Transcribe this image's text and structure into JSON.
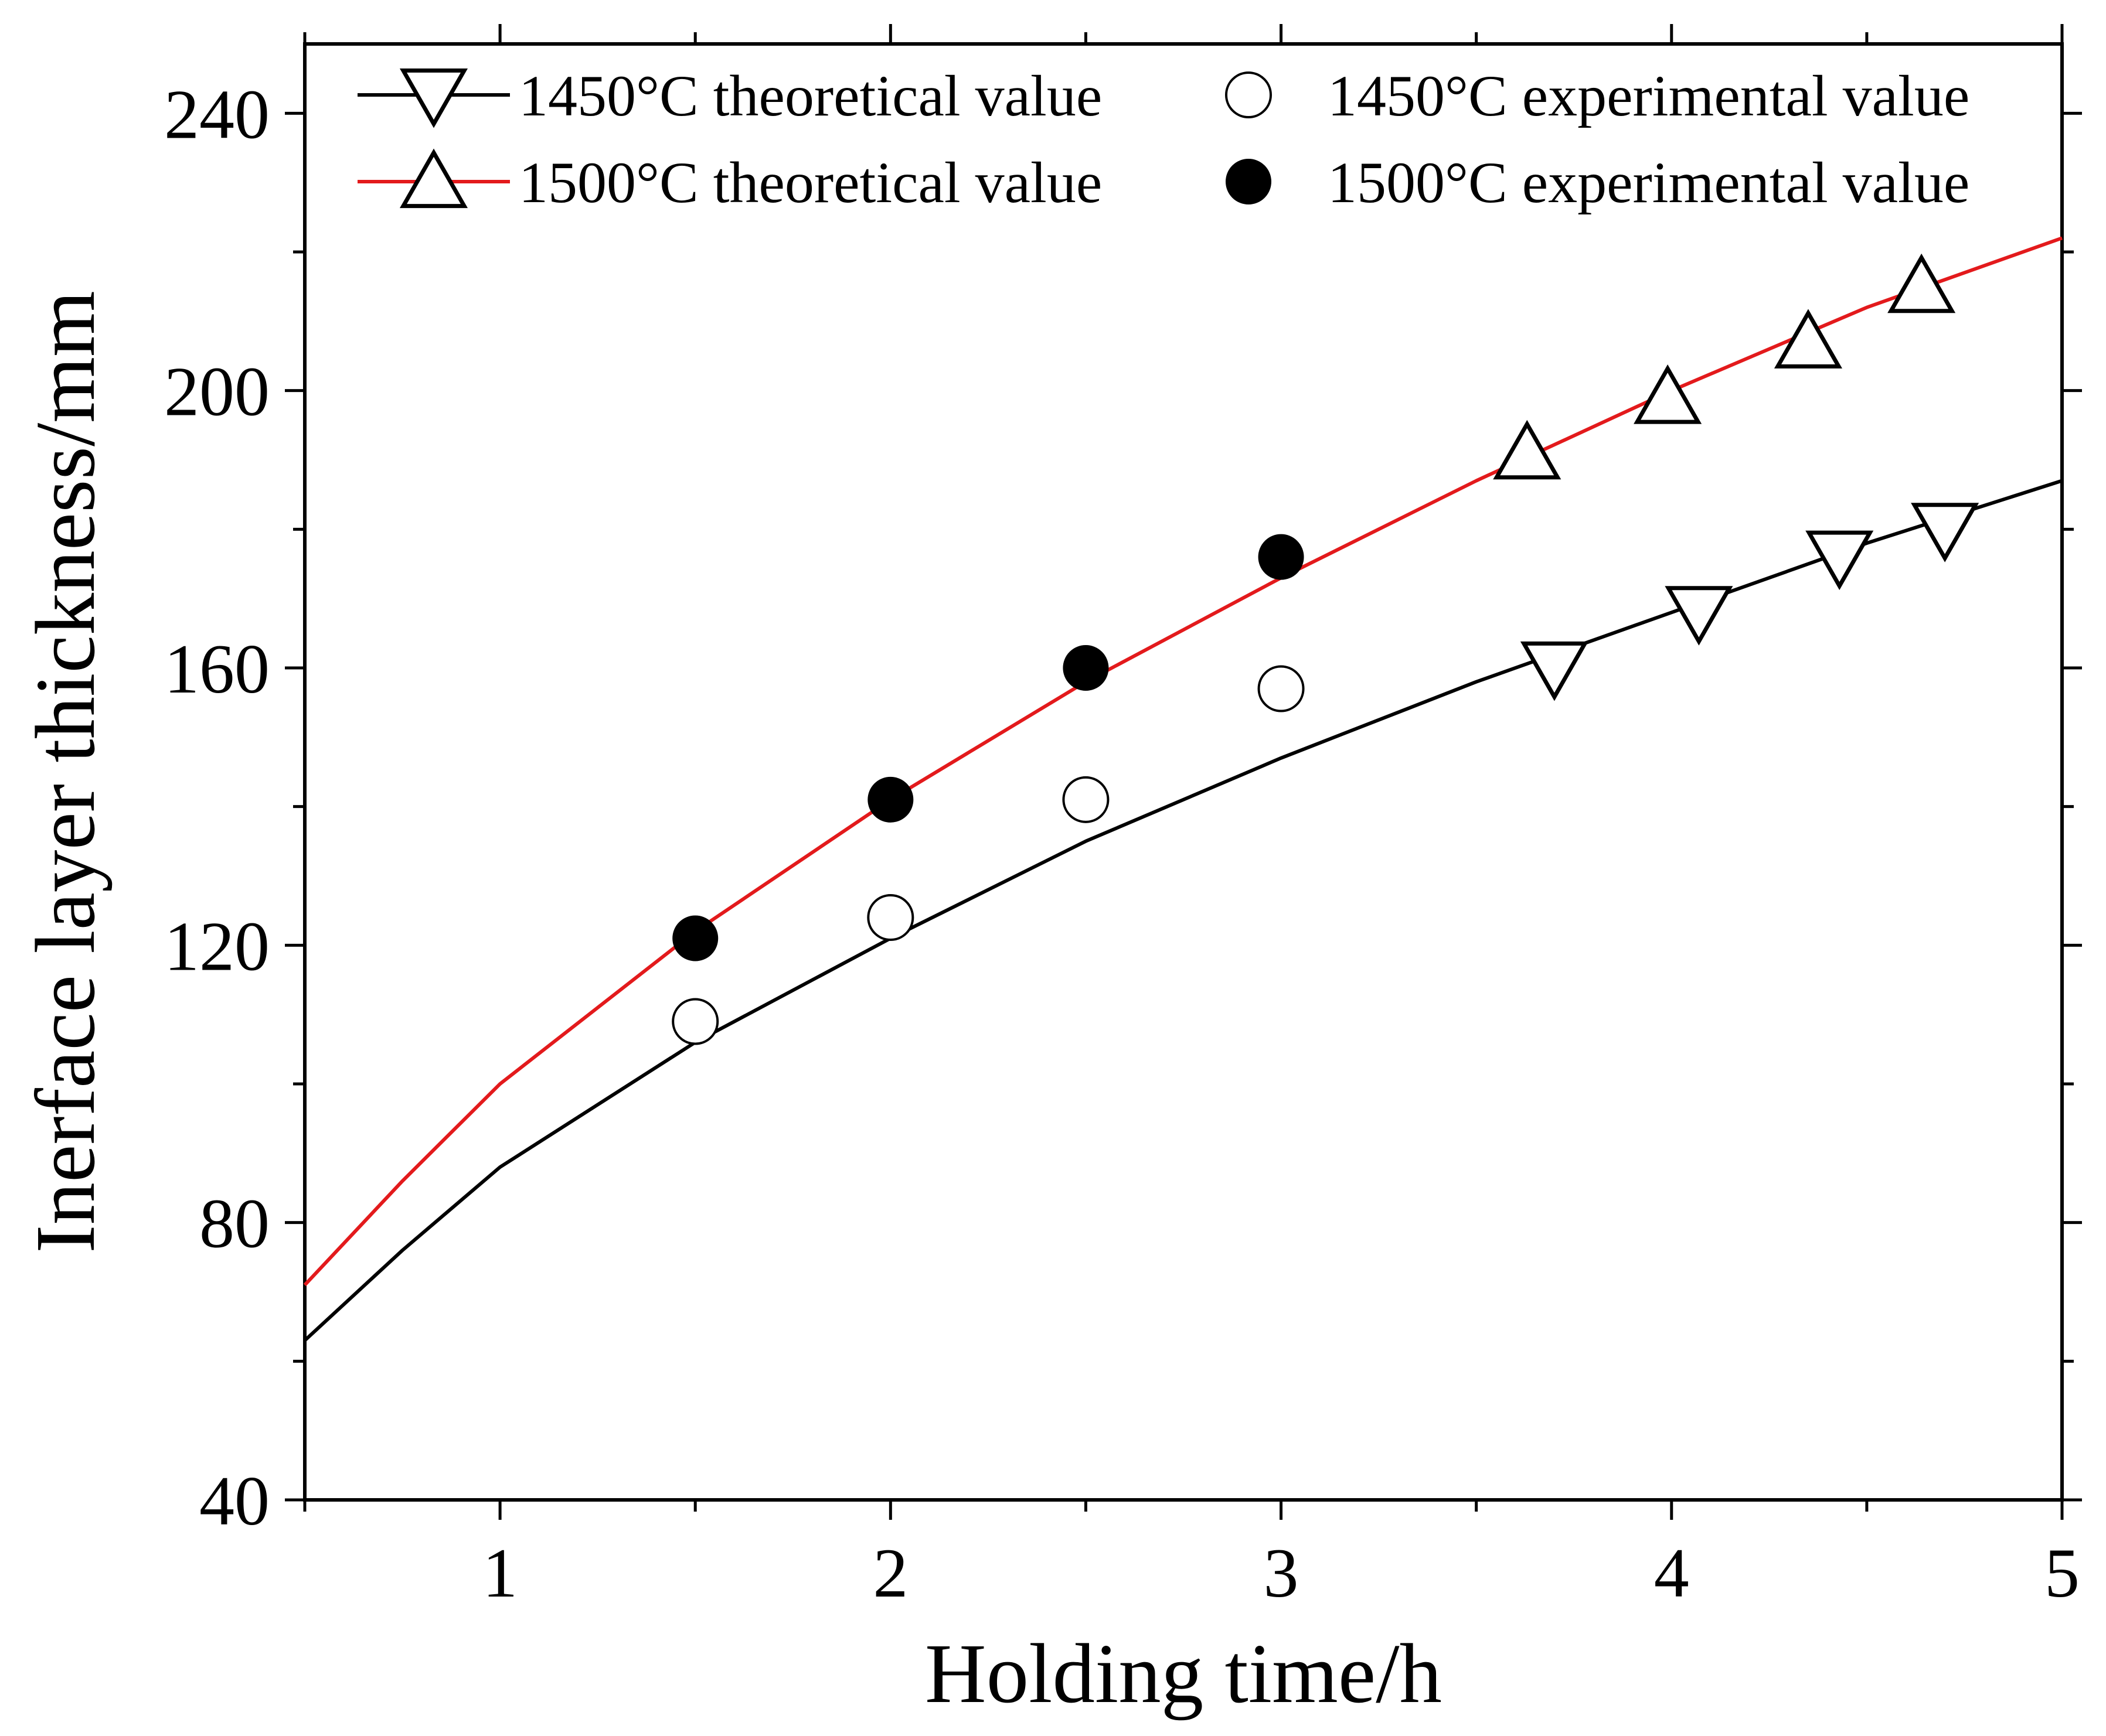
{
  "chart_data": {
    "type": "line",
    "title": "",
    "xlabel": "Holding time/h",
    "ylabel": "Inerface layer thickness/mm",
    "xlim": [
      0.5,
      5
    ],
    "ylim": [
      40,
      250
    ],
    "xticks": [
      1,
      2,
      3,
      4,
      5
    ],
    "yticks": [
      40,
      80,
      120,
      160,
      200,
      240
    ],
    "x_minor_step": 0.5,
    "y_minor_step": 20,
    "legend": {
      "position": "top",
      "entries": [
        {
          "series": "1450 theoretical",
          "label": "1450°C  theoretical value"
        },
        {
          "series": "1450 experimental",
          "label": "1450°C experimental value"
        },
        {
          "series": "1500 theoretical",
          "label": "1500°C  theoretical value"
        },
        {
          "series": "1500 experimental",
          "label": "1500°C experimental value"
        }
      ]
    },
    "series": [
      {
        "name": "1450 theoretical",
        "kind": "line",
        "color": "#000000",
        "marker": "triangle-down",
        "x": [
          0.5,
          0.75,
          1.0,
          1.5,
          2.0,
          2.5,
          3.0,
          3.5,
          4.0,
          4.5,
          5.0
        ],
        "y": [
          63,
          76,
          88,
          106,
          121,
          135,
          147,
          158,
          168,
          178,
          187
        ],
        "marker_points": {
          "x": [
            3.7,
            4.07,
            4.43,
            4.7
          ],
          "y": [
            160,
            168,
            176,
            180
          ]
        }
      },
      {
        "name": "1500 theoretical",
        "kind": "line",
        "color": "#e31a1c",
        "marker": "triangle-up",
        "x": [
          0.5,
          0.75,
          1.0,
          1.5,
          2.0,
          2.5,
          3.0,
          3.5,
          4.0,
          4.5,
          5.0
        ],
        "y": [
          71,
          86,
          100,
          122,
          141,
          158,
          173,
          187,
          200,
          212,
          222
        ],
        "marker_points": {
          "x": [
            3.63,
            3.99,
            4.35,
            4.64
          ],
          "y": [
            191,
            199,
            207,
            215
          ]
        }
      },
      {
        "name": "1450 experimental",
        "kind": "scatter",
        "color": "#000000",
        "marker": "circle-open",
        "x": [
          1.5,
          2.0,
          2.5,
          3.0
        ],
        "y": [
          109,
          124,
          141,
          157
        ]
      },
      {
        "name": "1500 experimental",
        "kind": "scatter",
        "color": "#000000",
        "marker": "circle-filled",
        "x": [
          1.5,
          2.0,
          2.5,
          3.0
        ],
        "y": [
          121,
          141,
          160,
          176
        ]
      }
    ]
  }
}
